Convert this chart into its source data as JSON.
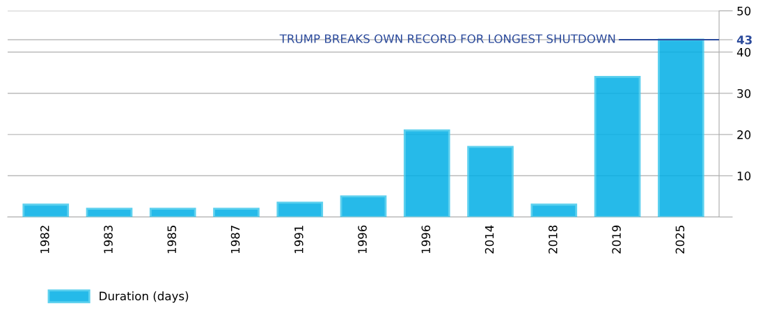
{
  "chart_data": {
    "type": "bar",
    "categories": [
      "1982",
      "1983",
      "1985",
      "1987",
      "1991",
      "1996",
      "1996",
      "2014",
      "2018",
      "2019",
      "2025"
    ],
    "series": [
      {
        "name": "Duration (days)",
        "color": "#00aee6",
        "values": [
          3,
          2,
          2,
          2,
          3.5,
          5,
          21,
          17,
          3,
          34,
          43
        ]
      }
    ],
    "ylim": [
      0,
      50
    ],
    "yticks": [
      {
        "value": 0,
        "label": null
      },
      10,
      20,
      30,
      40,
      43,
      50
    ],
    "grid": "y",
    "legend": "bottom left",
    "ref_lines": [
      {
        "axis": "y",
        "value": 43,
        "label": "TRUMP BREAKS OWN RECORD FOR LONGEST SHUTDOWN",
        "color": "#2b4a9b"
      }
    ]
  }
}
